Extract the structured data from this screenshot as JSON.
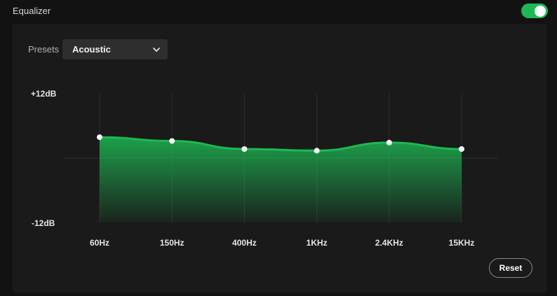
{
  "header": {
    "title": "Equalizer",
    "toggle_on": true
  },
  "presets": {
    "label": "Presets",
    "selected": "Acoustic"
  },
  "chart_data": {
    "type": "area",
    "ymax_label": "+12dB",
    "ymin_label": "-12dB",
    "ylim": [
      -12,
      12
    ],
    "categories": [
      "60Hz",
      "150Hz",
      "400Hz",
      "1KHz",
      "2.4KHz",
      "15KHz"
    ],
    "values": [
      3.9,
      3.2,
      1.7,
      1.4,
      2.9,
      1.7
    ],
    "grid": true,
    "color": "#1db954"
  },
  "actions": {
    "reset_label": "Reset"
  },
  "colors": {
    "accent": "#1db954",
    "background": "#121212",
    "panel": "#1a1a1a"
  }
}
